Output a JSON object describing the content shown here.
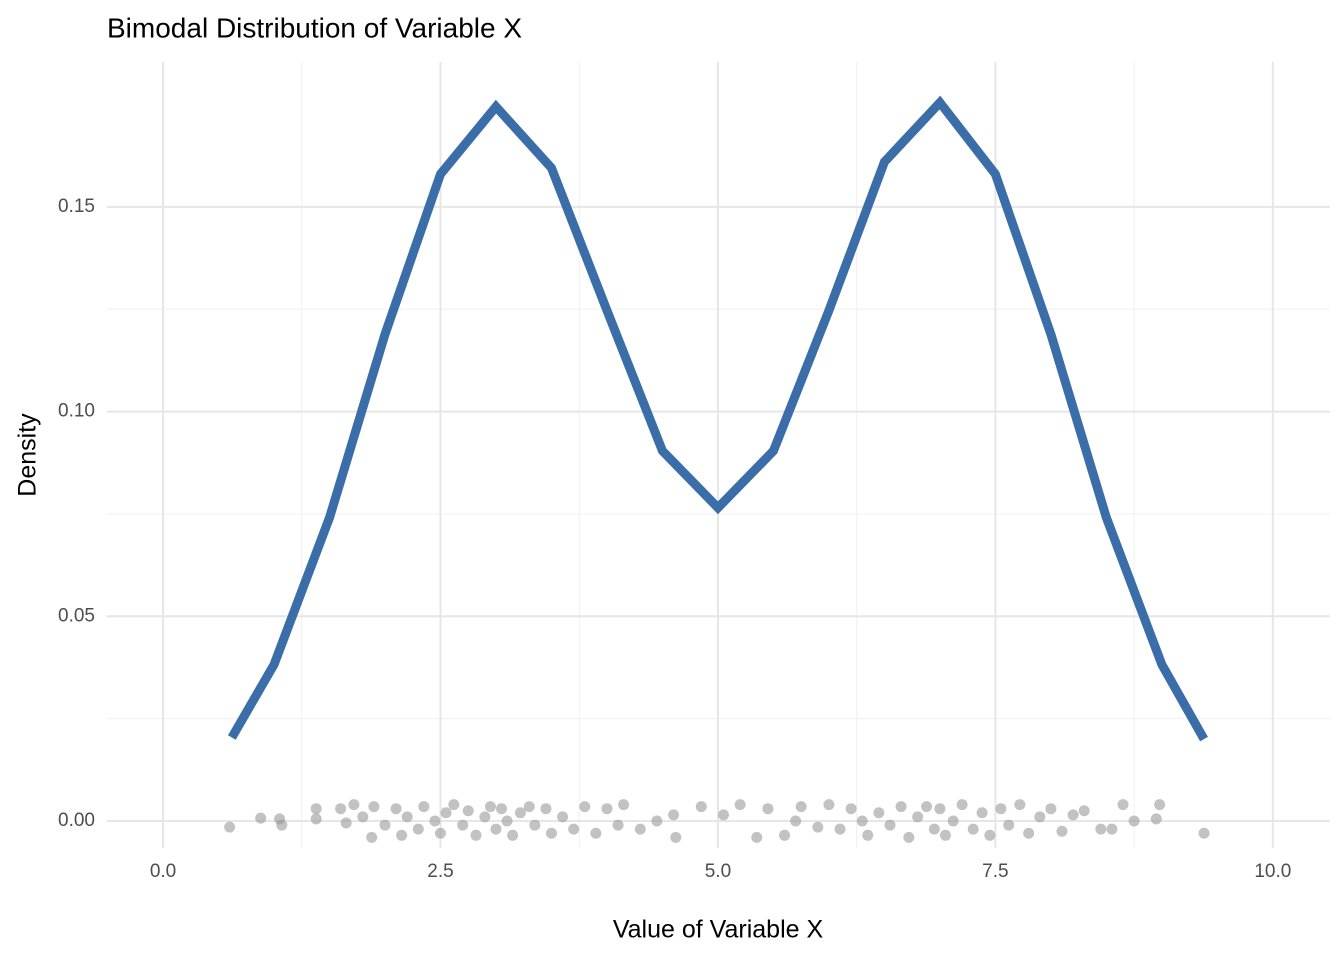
{
  "chart_data": {
    "type": "density",
    "title": "Bimodal Distribution of Variable X",
    "x_label": "Value of Variable X",
    "y_label": "Density",
    "xlim": [
      -0.505,
      10.515
    ],
    "ylim": [
      -0.0066,
      0.1854
    ],
    "xticks": [
      {
        "value": 0,
        "label": "0.0"
      },
      2.5,
      {
        "value": 5,
        "label": "5.0"
      },
      7.5,
      {
        "value": 10,
        "label": "10.0"
      }
    ],
    "yticks": [
      {
        "value": 0,
        "label": "0.00"
      },
      0.05,
      {
        "value": 0.1,
        "label": "0.10"
      },
      0.15
    ],
    "grid": true,
    "series": [
      {
        "kind": "line",
        "color": "#3b6ea8",
        "x": [
          0.62,
          1,
          1.5,
          2,
          2.5,
          3,
          3.5,
          4,
          4.5,
          5,
          5.5,
          6,
          6.5,
          7,
          7.5,
          8,
          8.5,
          9,
          9.38
        ],
        "values": [
          0.0204,
          0.0382,
          0.0741,
          0.1189,
          0.158,
          0.1745,
          0.1595,
          0.1247,
          0.0904,
          0.0765,
          0.0904,
          0.1247,
          0.161,
          0.1755,
          0.158,
          0.1189,
          0.0741,
          0.0382,
          0.02
        ]
      },
      {
        "kind": "points",
        "color": "#9a9a9a",
        "x": [
          0.6,
          0.88,
          1.05,
          1.07,
          1.38,
          1.38,
          1.6,
          1.65,
          1.72,
          1.8,
          1.88,
          1.9,
          2.0,
          2.1,
          2.15,
          2.2,
          2.3,
          2.35,
          2.45,
          2.5,
          2.55,
          2.62,
          2.7,
          2.75,
          2.82,
          2.9,
          2.95,
          3.0,
          3.05,
          3.1,
          3.15,
          3.22,
          3.3,
          3.35,
          3.45,
          3.5,
          3.6,
          3.7,
          3.8,
          3.9,
          4.0,
          4.1,
          4.15,
          4.3,
          4.45,
          4.6,
          4.62,
          4.85,
          5.05,
          5.2,
          5.35,
          5.45,
          5.6,
          5.7,
          5.75,
          5.9,
          6.0,
          6.1,
          6.2,
          6.3,
          6.35,
          6.45,
          6.55,
          6.65,
          6.72,
          6.8,
          6.88,
          6.95,
          7.0,
          7.05,
          7.12,
          7.2,
          7.3,
          7.38,
          7.45,
          7.55,
          7.62,
          7.72,
          7.8,
          7.9,
          8.0,
          8.1,
          8.2,
          8.3,
          8.45,
          8.55,
          8.65,
          8.75,
          8.95,
          8.98,
          9.38
        ],
        "values": [
          -0.0015,
          0.0007,
          0.0005,
          -0.001,
          0.003,
          0.0005,
          0.003,
          -0.0005,
          0.004,
          0.001,
          -0.004,
          0.0035,
          -0.001,
          0.003,
          -0.0035,
          0.001,
          -0.002,
          0.0035,
          0,
          -0.003,
          0.002,
          0.004,
          -0.001,
          0.0025,
          -0.0035,
          0.001,
          0.0035,
          -0.002,
          0.003,
          0,
          -0.0035,
          0.002,
          0.0035,
          -0.001,
          0.003,
          -0.003,
          0.001,
          -0.002,
          0.0035,
          -0.003,
          0.003,
          -0.001,
          0.004,
          -0.002,
          0,
          0.0015,
          -0.004,
          0.0035,
          0.0015,
          0.004,
          -0.004,
          0.003,
          -0.0035,
          0,
          0.0035,
          -0.0015,
          0.004,
          -0.002,
          0.003,
          0,
          -0.0035,
          0.002,
          -0.001,
          0.0035,
          -0.004,
          0.001,
          0.0035,
          -0.002,
          0.003,
          -0.0035,
          0,
          0.004,
          -0.002,
          0.002,
          -0.0035,
          0.003,
          -0.001,
          0.004,
          -0.003,
          0.001,
          0.003,
          -0.0025,
          0.0015,
          0.0025,
          -0.002,
          -0.002,
          0.004,
          0,
          0.0005,
          0.004,
          -0.003
        ]
      }
    ]
  }
}
